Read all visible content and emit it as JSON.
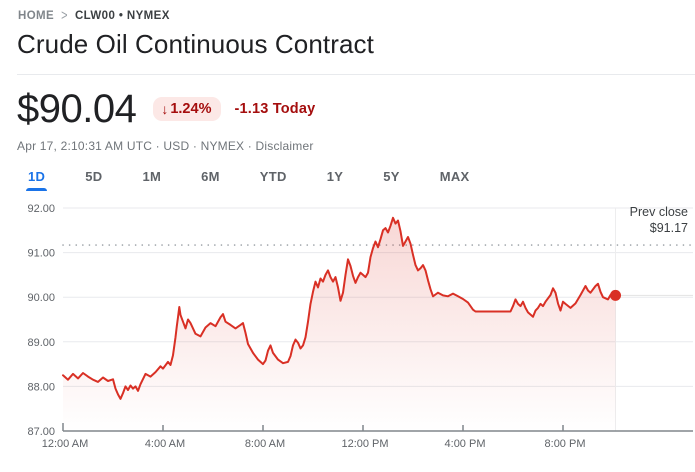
{
  "breadcrumb": {
    "home": "HOME",
    "chevron": ">",
    "symbol": "CLW00 • NYMEX"
  },
  "title": "Crude Oil Continuous Contract",
  "quote": {
    "price": "$90.04",
    "change_arrow": "↓",
    "change_percent": "1.24%",
    "change_amount": "-1.13 Today",
    "meta_text": "Apr 17, 2:10:31 AM UTC · USD · NYMEX · ",
    "disclaimer_label": "Disclaimer"
  },
  "tabs": [
    {
      "label": "1D",
      "active": true
    },
    {
      "label": "5D",
      "active": false
    },
    {
      "label": "1M",
      "active": false
    },
    {
      "label": "6M",
      "active": false
    },
    {
      "label": "YTD",
      "active": false
    },
    {
      "label": "1Y",
      "active": false
    },
    {
      "label": "5Y",
      "active": false
    },
    {
      "label": "MAX",
      "active": false
    }
  ],
  "colors": {
    "line_red": "#d93025",
    "fill_red_top": "rgba(217,48,37,0.20)",
    "fill_red_bottom": "rgba(217,48,37,0)",
    "badge_bg": "#fce8e6",
    "badge_text": "#a50e0e",
    "tab_active_blue": "#1a73e8",
    "gridline": "#e8eaed",
    "axis": "#80868b",
    "dotted_prevclose": "#9aa0a6"
  },
  "chart_data": {
    "type": "line",
    "title": "Crude Oil Continuous Contract 1D intraday",
    "prev_close_label": "Prev close",
    "prev_close_text": "$91.17",
    "prev_close": 91.17,
    "last_price": 90.04,
    "ylim": [
      87,
      92
    ],
    "y_ticks": [
      "92.00",
      "91.00",
      "90.00",
      "89.00",
      "88.00",
      "87.00"
    ],
    "x_ticks": [
      "12:00 AM",
      "4:00 AM",
      "8:00 AM",
      "12:00 PM",
      "4:00 PM",
      "8:00 PM"
    ],
    "x_tick_hours": [
      0,
      4,
      8,
      12,
      16,
      20
    ],
    "xlim_hours": [
      0,
      25.2
    ],
    "grid": true,
    "legend": "none",
    "series": [
      {
        "name": "price",
        "x_hours": [
          0,
          0.2,
          0.4,
          0.6,
          0.8,
          1.0,
          1.2,
          1.4,
          1.6,
          1.8,
          2.0,
          2.1,
          2.2,
          2.3,
          2.4,
          2.5,
          2.6,
          2.7,
          2.8,
          2.9,
          3.0,
          3.1,
          3.3,
          3.5,
          3.7,
          3.9,
          4.0,
          4.2,
          4.3,
          4.4,
          4.5,
          4.55,
          4.6,
          4.65,
          4.7,
          4.8,
          4.9,
          5.0,
          5.1,
          5.2,
          5.3,
          5.5,
          5.7,
          5.9,
          6.1,
          6.3,
          6.4,
          6.5,
          6.7,
          6.9,
          7.1,
          7.2,
          7.3,
          7.4,
          7.6,
          7.8,
          8.0,
          8.1,
          8.2,
          8.3,
          8.4,
          8.6,
          8.8,
          9.0,
          9.1,
          9.2,
          9.3,
          9.4,
          9.5,
          9.6,
          9.7,
          9.8,
          9.9,
          10.0,
          10.1,
          10.2,
          10.3,
          10.4,
          10.5,
          10.6,
          10.7,
          10.8,
          10.9,
          11.0,
          11.1,
          11.2,
          11.3,
          11.4,
          11.5,
          11.6,
          11.7,
          11.8,
          11.9,
          12.0,
          12.1,
          12.2,
          12.3,
          12.4,
          12.5,
          12.6,
          12.7,
          12.8,
          12.9,
          13.0,
          13.1,
          13.2,
          13.3,
          13.4,
          13.5,
          13.6,
          13.7,
          13.8,
          13.9,
          14.0,
          14.1,
          14.2,
          14.3,
          14.4,
          14.5,
          14.6,
          14.7,
          14.8,
          14.9,
          15.0,
          15.2,
          15.4,
          15.6,
          15.8,
          16.0,
          16.2,
          16.4,
          16.5,
          16.9,
          17.9,
          18.0,
          18.1,
          18.2,
          18.3,
          18.4,
          18.5,
          18.6,
          18.8,
          18.9,
          19.0,
          19.1,
          19.2,
          19.3,
          19.5,
          19.6,
          19.7,
          19.8,
          19.9,
          20.0,
          20.1,
          20.3,
          20.5,
          20.7,
          20.8,
          20.9,
          21.0,
          21.1,
          21.3,
          21.4,
          21.5,
          21.6,
          21.8,
          21.9,
          22.0,
          22.1
        ],
        "values": [
          88.25,
          88.15,
          88.28,
          88.18,
          88.3,
          88.22,
          88.15,
          88.1,
          88.2,
          88.12,
          88.16,
          87.95,
          87.82,
          87.72,
          87.85,
          88.0,
          87.92,
          88.02,
          87.95,
          88.0,
          87.9,
          88.05,
          88.28,
          88.22,
          88.32,
          88.45,
          88.4,
          88.55,
          88.48,
          88.7,
          89.1,
          89.35,
          89.55,
          89.78,
          89.6,
          89.45,
          89.3,
          89.5,
          89.42,
          89.3,
          89.18,
          89.12,
          89.32,
          89.42,
          89.35,
          89.55,
          89.62,
          89.45,
          89.38,
          89.3,
          89.38,
          89.42,
          89.2,
          88.95,
          88.75,
          88.6,
          88.5,
          88.58,
          88.8,
          88.92,
          88.75,
          88.6,
          88.52,
          88.55,
          88.68,
          88.92,
          89.05,
          88.98,
          88.85,
          88.92,
          89.1,
          89.45,
          89.85,
          90.12,
          90.35,
          90.22,
          90.42,
          90.35,
          90.5,
          90.6,
          90.45,
          90.35,
          90.45,
          90.22,
          89.92,
          90.1,
          90.5,
          90.85,
          90.7,
          90.48,
          90.32,
          90.45,
          90.55,
          90.5,
          90.45,
          90.55,
          90.9,
          91.1,
          91.25,
          91.12,
          91.3,
          91.5,
          91.55,
          91.45,
          91.6,
          91.78,
          91.65,
          91.72,
          91.48,
          91.15,
          91.25,
          91.35,
          91.2,
          90.95,
          90.72,
          90.6,
          90.65,
          90.72,
          90.6,
          90.38,
          90.18,
          90.02,
          90.06,
          90.1,
          90.04,
          90.02,
          90.08,
          90.02,
          89.96,
          89.88,
          89.72,
          89.68,
          89.68,
          89.68,
          89.8,
          89.95,
          89.85,
          89.8,
          89.9,
          89.76,
          89.66,
          89.56,
          89.7,
          89.76,
          89.85,
          89.8,
          89.9,
          90.05,
          90.2,
          90.1,
          89.86,
          89.7,
          89.9,
          89.85,
          89.76,
          89.86,
          90.05,
          90.15,
          90.25,
          90.15,
          90.1,
          90.25,
          90.3,
          90.12,
          90.0,
          89.95,
          90.05,
          90.0,
          90.04
        ]
      }
    ]
  }
}
